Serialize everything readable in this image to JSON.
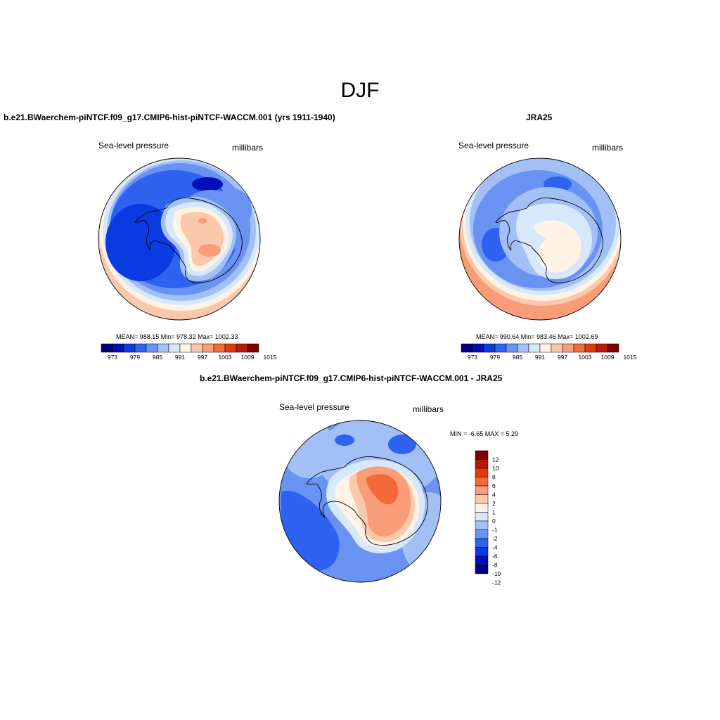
{
  "figure_title": "DJF",
  "panels": [
    {
      "title": "b.e21.BWaerchem-piNTCF.f09_g17.CMIP6-hist-piNTCF-WACCM.001 (yrs 1911-1940)",
      "left_label": "Sea-level pressure",
      "right_label": "millibars",
      "stats": "MEAN= 988.15  Min= 978.32  Max= 1002.33",
      "colorbar_ticks": [
        "973",
        "979",
        "985",
        "991",
        "997",
        "1003",
        "1009",
        "1015"
      ]
    },
    {
      "title": "JRA25",
      "left_label": "Sea-level pressure",
      "right_label": "millibars",
      "stats": "MEAN= 990.64  Min= 983.46  Max= 1002.69",
      "colorbar_ticks": [
        "973",
        "979",
        "985",
        "991",
        "997",
        "1003",
        "1009",
        "1015"
      ]
    },
    {
      "title": "b.e21.BWaerchem-piNTCF.f09_g17.CMIP6-hist-piNTCF-WACCM.001 - JRA25",
      "left_label": "Sea-level pressure",
      "right_label": "millibars",
      "stats": "MIN =  -6.65 MAX =   5.29",
      "colorbar_ticks": [
        "12",
        "10",
        "8",
        "6",
        "4",
        "2",
        "1",
        "0",
        "-1",
        "-2",
        "-4",
        "-6",
        "-8",
        "-10",
        "-12"
      ]
    }
  ],
  "palette": [
    "#00007f",
    "#0010b8",
    "#0a3be0",
    "#2e62f0",
    "#6a92f2",
    "#a3c0f6",
    "#d8e8fb",
    "#fff3e6",
    "#fbc8ac",
    "#f89d78",
    "#f26a3c",
    "#e3390f",
    "#b81a05",
    "#7f0000"
  ],
  "diff_palette": [
    "#7f0000",
    "#b81a05",
    "#e3390f",
    "#f26a3c",
    "#f89d78",
    "#fbc8ac",
    "#fff3e6",
    "#d8e8fb",
    "#a3c0f6",
    "#6a92f2",
    "#2e62f0",
    "#0a3be0",
    "#0010b8",
    "#00007f"
  ]
}
